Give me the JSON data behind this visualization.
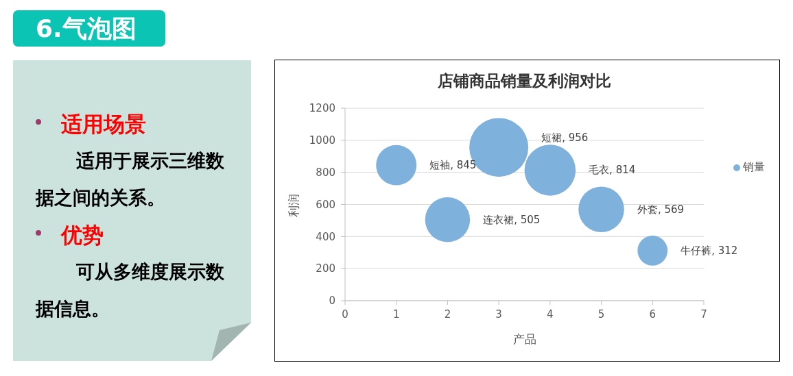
{
  "chart_data": [
    {
      "type": "other",
      "title": "6.气泡图",
      "annotations": [
        "适用场景",
        "适用于展示三维数据之间的关系。",
        "优势",
        "可从多维度展示数据信息。"
      ]
    },
    {
      "type": "bubble",
      "title": "店铺商品销量及利润对比",
      "xlabel": "产品",
      "ylabel": "利润",
      "x": [
        1,
        2,
        3,
        4,
        5,
        6
      ],
      "series": [
        {
          "name": "销量",
          "color": "#7fb1dd",
          "values": [
            845,
            505,
            956,
            814,
            569,
            312
          ],
          "sizes": [
            0.47,
            0.58,
            1,
            0.75,
            0.6,
            0.26
          ],
          "value_labels": [
            "短袖, 845",
            "连衣裙, 505",
            "短裙, 956",
            "毛衣, 814",
            "外套, 569",
            "牛仔裤, 312"
          ]
        }
      ],
      "xlim": [
        0,
        7
      ],
      "xticks": [
        0,
        1,
        2,
        3,
        4,
        5,
        6,
        7
      ],
      "ylim": [
        0,
        1200
      ],
      "yticks": [
        0,
        200,
        400,
        600,
        800,
        1000,
        1200
      ],
      "grid": "y",
      "legend": "right"
    }
  ]
}
